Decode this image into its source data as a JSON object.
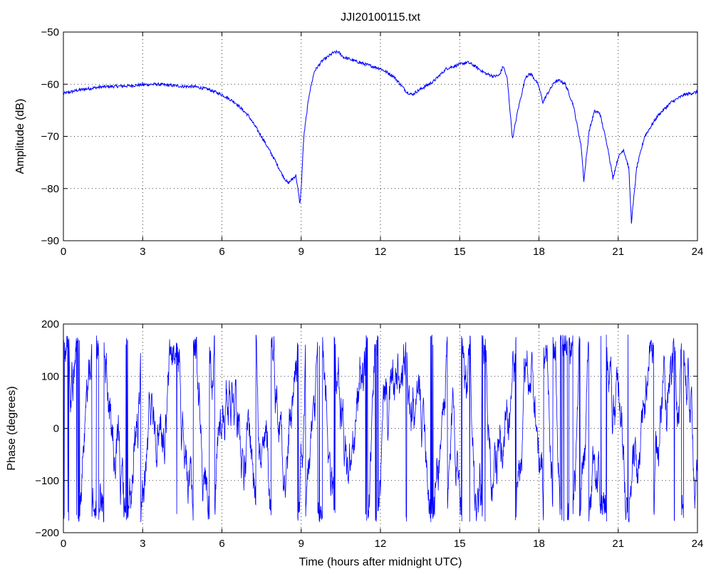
{
  "figure": {
    "title": "JJI20100115.txt",
    "line_color": "#0000ff",
    "background": "#ffffff",
    "grid": "dotted"
  },
  "chart_data": [
    {
      "type": "line",
      "ylabel": "Amplitude (dB)",
      "xlabel": "",
      "xlim": [
        0,
        24
      ],
      "ylim": [
        -90,
        -50
      ],
      "xticks": [
        0,
        3,
        6,
        9,
        12,
        15,
        18,
        21,
        24
      ],
      "yticks": [
        -90,
        -80,
        -70,
        -60,
        -50
      ],
      "grid": true,
      "series": [
        {
          "x": [
            0,
            0.5,
            1,
            1.5,
            2,
            2.5,
            3,
            3.5,
            4,
            4.5,
            5,
            5.5,
            6,
            6.5,
            7,
            7.5,
            8,
            8.3,
            8.5,
            8.7,
            8.8,
            8.9,
            8.95,
            9.0,
            9.1,
            9.3,
            9.5,
            9.8,
            10,
            10.2,
            10.4,
            10.6,
            11,
            11.5,
            12,
            12.5,
            13,
            13.2,
            13.5,
            14,
            14.5,
            15,
            15.3,
            15.5,
            16,
            16.3,
            16.5,
            16.65,
            16.8,
            17.0,
            17.2,
            17.5,
            17.7,
            17.9,
            18.0,
            18.15,
            18.3,
            18.6,
            18.8,
            19.0,
            19.3,
            19.6,
            19.7,
            19.9,
            20.1,
            20.3,
            20.6,
            20.8,
            21.0,
            21.2,
            21.4,
            21.5,
            21.7,
            22,
            22.5,
            23,
            23.5,
            24
          ],
          "y": [
            -61.8,
            -61.2,
            -60.8,
            -60.5,
            -60.4,
            -60.3,
            -60.1,
            -60.0,
            -60.2,
            -60.4,
            -60.5,
            -61.0,
            -62.0,
            -63.5,
            -66.0,
            -70.0,
            -74.5,
            -77.5,
            -79.0,
            -78.0,
            -77.5,
            -81.0,
            -83.0,
            -80.0,
            -70.0,
            -62.0,
            -57.5,
            -55.5,
            -54.8,
            -54.0,
            -53.8,
            -54.8,
            -55.5,
            -56.3,
            -57.0,
            -58.5,
            -61.5,
            -62.0,
            -61.0,
            -59.5,
            -57.0,
            -56.2,
            -55.8,
            -56.3,
            -58.0,
            -58.5,
            -58.3,
            -56.5,
            -59.0,
            -70.5,
            -65.0,
            -58.5,
            -58.0,
            -59.5,
            -60.5,
            -63.5,
            -62.0,
            -59.5,
            -59.3,
            -60.0,
            -64.0,
            -72.0,
            -78.5,
            -69.0,
            -65.2,
            -65.5,
            -72.0,
            -78.0,
            -74.0,
            -72.5,
            -76.0,
            -86.5,
            -76.0,
            -70.0,
            -66.0,
            -63.5,
            -62.0,
            -61.5
          ],
          "color": "#0000ff"
        }
      ]
    },
    {
      "type": "line",
      "ylabel": "Phase (degrees)",
      "xlabel": "Time (hours after midnight UTC)",
      "xlim": [
        0,
        24
      ],
      "ylim": [
        -200,
        200
      ],
      "xticks": [
        0,
        3,
        6,
        9,
        12,
        15,
        18,
        21,
        24
      ],
      "yticks": [
        -200,
        -100,
        0,
        100,
        200
      ],
      "grid": true,
      "series": [
        {
          "style": "wrapped phase, oscillates between -180 and 180",
          "color": "#0000ff",
          "wrap_range": [
            -180,
            180
          ]
        }
      ]
    }
  ]
}
